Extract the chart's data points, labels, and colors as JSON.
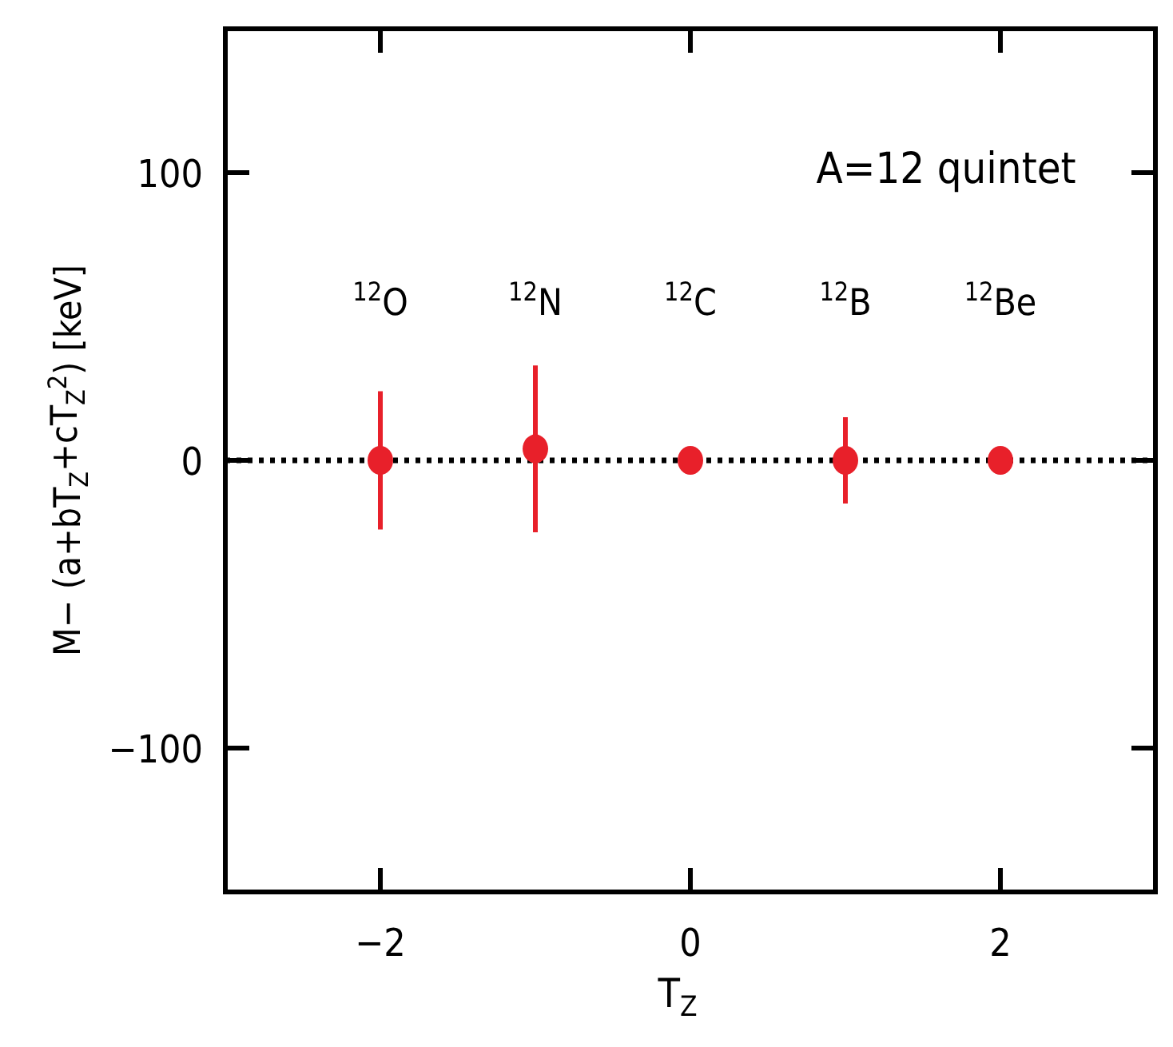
{
  "chart_data": {
    "type": "scatter",
    "title": "A=12 quintet",
    "xlabel": "T$_{Z}$",
    "ylabel": "M− (a+bT$_{Z}$+cT$_{Z}$$^{2}$) [keV]",
    "x": [
      -2,
      -1,
      0,
      1,
      2
    ],
    "series": [
      {
        "color": "#e8202a",
        "values": [
          0,
          4,
          0,
          0,
          0
        ],
        "errors": [
          24,
          29,
          null,
          15,
          null
        ]
      }
    ],
    "xlim": [
      -3,
      3
    ],
    "ylim": [
      -150,
      150
    ],
    "xticks": [
      {
        "value": -2,
        "label": "−2"
      },
      0,
      2
    ],
    "yticks": [
      {
        "value": -100,
        "label": "−100"
      },
      0,
      100
    ],
    "ref_lines": [
      {
        "axis": "y",
        "value": 0,
        "color": "#000000",
        "line_style": "dotted"
      }
    ],
    "annotations": [
      "$^{12}$O",
      "$^{12}$N",
      "$^{12}$C",
      "$^{12}$B",
      "$^{12}$Be"
    ],
    "marker": "circle",
    "grid": false
  }
}
